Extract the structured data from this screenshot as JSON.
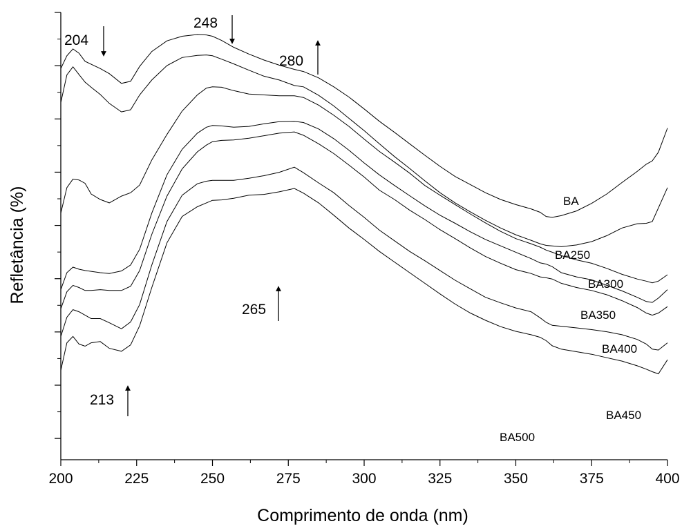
{
  "chart_data": {
    "type": "line",
    "title": "",
    "xlabel": "Comprimento de onda (nm)",
    "ylabel": "Refletância (%)",
    "xlim": [
      200,
      400
    ],
    "ylim": [
      0,
      100
    ],
    "xticks": [
      200,
      225,
      250,
      275,
      300,
      325,
      350,
      375,
      400
    ],
    "y_tick_labels_shown": false,
    "grid": false,
    "legend": "inline labels at right end of curves",
    "series": [
      {
        "name": "BA",
        "x": [
          200,
          202,
          204,
          206,
          208,
          210,
          213,
          216,
          220,
          223,
          226,
          230,
          235,
          240,
          245,
          248,
          250,
          253,
          257,
          262,
          267,
          272,
          277,
          280,
          285,
          290,
          295,
          300,
          305,
          310,
          315,
          320,
          325,
          330,
          335,
          340,
          345,
          350,
          355,
          358,
          360,
          362,
          365,
          370,
          375,
          380,
          385,
          390,
          393,
          395,
          397,
          400
        ],
        "y": [
          92.0,
          95.0,
          96.6,
          95.6,
          93.7,
          93.0,
          92.0,
          90.8,
          88.5,
          89.0,
          92.5,
          96.0,
          98.5,
          99.6,
          100.0,
          99.9,
          99.6,
          98.6,
          97.0,
          95.4,
          94.0,
          92.8,
          91.8,
          91.3,
          89.8,
          87.7,
          85.3,
          82.5,
          79.6,
          77.0,
          74.3,
          71.6,
          69.0,
          66.6,
          64.7,
          62.8,
          61.2,
          60.0,
          59.0,
          58.2,
          57.2,
          57.0,
          57.4,
          58.5,
          60.3,
          62.5,
          65.2,
          67.8,
          69.5,
          70.3,
          72.3,
          78.0
        ]
      },
      {
        "name": "BA250",
        "x": [
          200,
          202,
          204,
          206,
          208,
          210,
          213,
          216,
          220,
          223,
          226,
          230,
          235,
          240,
          245,
          248,
          250,
          253,
          257,
          262,
          267,
          272,
          277,
          280,
          285,
          290,
          295,
          300,
          305,
          310,
          315,
          320,
          325,
          330,
          335,
          340,
          345,
          350,
          355,
          358,
          360,
          362,
          365,
          370,
          375,
          380,
          385,
          390,
          393,
          395,
          397,
          400
        ],
        "y": [
          84.0,
          90.5,
          92.4,
          90.6,
          88.8,
          87.6,
          85.9,
          83.8,
          81.8,
          82.3,
          85.8,
          89.3,
          92.7,
          94.6,
          95.1,
          95.2,
          95.0,
          94.2,
          93.1,
          91.6,
          90.2,
          89.3,
          88.0,
          87.7,
          85.7,
          83.2,
          80.3,
          77.4,
          74.3,
          71.3,
          68.5,
          65.6,
          62.8,
          60.4,
          58.3,
          56.3,
          54.5,
          52.9,
          51.6,
          50.8,
          50.4,
          50.3,
          50.1,
          50.5,
          51.3,
          52.7,
          54.5,
          55.5,
          55.6,
          56.0,
          59.2,
          64.0
        ]
      },
      {
        "name": "BA300",
        "x": [
          200,
          202,
          204,
          206,
          208,
          210,
          213,
          216,
          220,
          223,
          226,
          230,
          235,
          240,
          245,
          248,
          250,
          253,
          257,
          262,
          267,
          272,
          277,
          280,
          285,
          290,
          295,
          300,
          305,
          310,
          315,
          320,
          325,
          330,
          335,
          340,
          345,
          350,
          355,
          358,
          360,
          362,
          365,
          370,
          375,
          380,
          385,
          390,
          393,
          395,
          397,
          400
        ],
        "y": [
          58.0,
          64.0,
          66.0,
          65.8,
          65.0,
          62.5,
          61.2,
          60.4,
          62.0,
          62.8,
          64.6,
          70.5,
          76.5,
          82.0,
          85.8,
          87.4,
          87.7,
          87.6,
          86.8,
          86.0,
          85.8,
          85.6,
          85.6,
          85.2,
          83.4,
          81.0,
          78.4,
          75.4,
          72.5,
          70.0,
          67.4,
          64.5,
          62.2,
          60.0,
          57.8,
          55.7,
          53.7,
          52.0,
          50.8,
          50.0,
          49.3,
          48.8,
          48.0,
          47.0,
          46.2,
          45.0,
          43.6,
          42.5,
          42.0,
          41.6,
          42.0,
          43.5
        ]
      },
      {
        "name": "BA350",
        "x": [
          200,
          202,
          204,
          206,
          208,
          210,
          213,
          216,
          220,
          223,
          226,
          230,
          235,
          240,
          245,
          248,
          250,
          253,
          257,
          262,
          267,
          272,
          277,
          280,
          285,
          290,
          295,
          300,
          305,
          310,
          315,
          320,
          325,
          330,
          335,
          340,
          345,
          350,
          355,
          358,
          360,
          362,
          365,
          370,
          375,
          380,
          385,
          390,
          393,
          395,
          397,
          400
        ],
        "y": [
          40.0,
          44.0,
          45.3,
          44.8,
          44.5,
          44.3,
          44.0,
          43.8,
          44.4,
          45.8,
          49.5,
          58.0,
          67.0,
          73.0,
          76.8,
          78.2,
          78.6,
          78.5,
          78.2,
          78.4,
          79.0,
          79.5,
          79.6,
          79.3,
          77.8,
          75.5,
          72.8,
          69.8,
          67.0,
          64.5,
          62.1,
          59.7,
          57.5,
          55.6,
          53.6,
          51.8,
          50.3,
          48.8,
          47.3,
          46.3,
          46.0,
          45.4,
          44.0,
          43.0,
          42.3,
          41.0,
          39.7,
          38.2,
          37.2,
          37.0,
          38.0,
          40.0
        ]
      },
      {
        "name": "BA400",
        "x": [
          200,
          202,
          204,
          206,
          208,
          210,
          213,
          216,
          220,
          223,
          226,
          230,
          235,
          240,
          245,
          248,
          250,
          253,
          257,
          262,
          267,
          272,
          277,
          280,
          285,
          290,
          295,
          300,
          305,
          310,
          315,
          320,
          325,
          330,
          335,
          340,
          345,
          350,
          355,
          358,
          360,
          362,
          365,
          370,
          375,
          380,
          385,
          390,
          393,
          395,
          397,
          400
        ],
        "y": [
          35.5,
          39.5,
          41.0,
          40.5,
          39.8,
          39.8,
          40.0,
          39.8,
          39.8,
          40.8,
          44.5,
          53.0,
          62.0,
          68.4,
          72.4,
          74.0,
          74.8,
          75.1,
          75.2,
          75.6,
          76.2,
          76.8,
          77.1,
          76.3,
          74.3,
          72.0,
          69.3,
          66.5,
          63.4,
          61.2,
          58.7,
          56.5,
          54.1,
          52.0,
          49.8,
          47.8,
          46.2,
          44.7,
          43.8,
          43.0,
          42.8,
          42.5,
          41.5,
          40.5,
          39.8,
          38.8,
          37.4,
          35.8,
          34.5,
          34.0,
          34.5,
          36.0
        ]
      },
      {
        "name": "BA450",
        "x": [
          200,
          202,
          204,
          206,
          208,
          210,
          213,
          216,
          220,
          223,
          226,
          230,
          235,
          240,
          245,
          248,
          250,
          253,
          257,
          262,
          267,
          272,
          277,
          280,
          285,
          290,
          295,
          300,
          305,
          310,
          315,
          320,
          325,
          330,
          335,
          340,
          345,
          350,
          355,
          358,
          360,
          362,
          365,
          370,
          375,
          380,
          385,
          390,
          393,
          395,
          397,
          400
        ],
        "y": [
          29.0,
          33.5,
          35.3,
          34.8,
          34.0,
          33.2,
          33.2,
          32.2,
          30.8,
          32.4,
          36.5,
          45.8,
          56.0,
          62.2,
          64.9,
          65.5,
          65.7,
          65.7,
          65.7,
          66.2,
          66.8,
          67.6,
          68.8,
          67.5,
          65.1,
          62.8,
          59.8,
          57.0,
          54.0,
          51.5,
          49.0,
          46.8,
          44.5,
          42.2,
          40.2,
          38.2,
          36.9,
          35.7,
          34.8,
          33.4,
          32.3,
          31.6,
          31.4,
          31.0,
          30.6,
          30.1,
          29.4,
          28.3,
          27.2,
          26.0,
          25.8,
          27.5
        ]
      },
      {
        "name": "BA500",
        "x": [
          200,
          202,
          204,
          206,
          208,
          210,
          213,
          216,
          220,
          223,
          226,
          230,
          235,
          240,
          245,
          248,
          250,
          253,
          257,
          262,
          267,
          272,
          277,
          280,
          285,
          290,
          295,
          300,
          305,
          310,
          315,
          320,
          325,
          330,
          335,
          340,
          345,
          350,
          355,
          358,
          360,
          362,
          365,
          370,
          375,
          380,
          385,
          390,
          393,
          395,
          397,
          400
        ],
        "y": [
          21.0,
          27.5,
          29.0,
          27.2,
          26.7,
          27.5,
          27.8,
          26.2,
          25.5,
          27.0,
          31.5,
          40.5,
          51.0,
          57.2,
          59.5,
          60.4,
          61.0,
          61.1,
          61.5,
          62.2,
          62.4,
          63.0,
          63.8,
          62.7,
          60.4,
          57.5,
          54.5,
          51.8,
          49.0,
          46.5,
          44.0,
          41.5,
          39.0,
          36.6,
          34.5,
          32.8,
          31.3,
          30.2,
          29.4,
          28.8,
          28.0,
          26.8,
          26.0,
          25.4,
          24.8,
          24.0,
          23.2,
          22.1,
          21.3,
          20.7,
          20.2,
          23.5
        ]
      }
    ],
    "annotations": [
      {
        "text": "204",
        "x": 204,
        "arrow": "down"
      },
      {
        "text": "248",
        "x": 248,
        "arrow": "down"
      },
      {
        "text": "280",
        "x": 280,
        "arrow": "up"
      },
      {
        "text": "265",
        "x": 265,
        "arrow": "up"
      },
      {
        "text": "213",
        "x": 213,
        "arrow": "up"
      }
    ]
  }
}
